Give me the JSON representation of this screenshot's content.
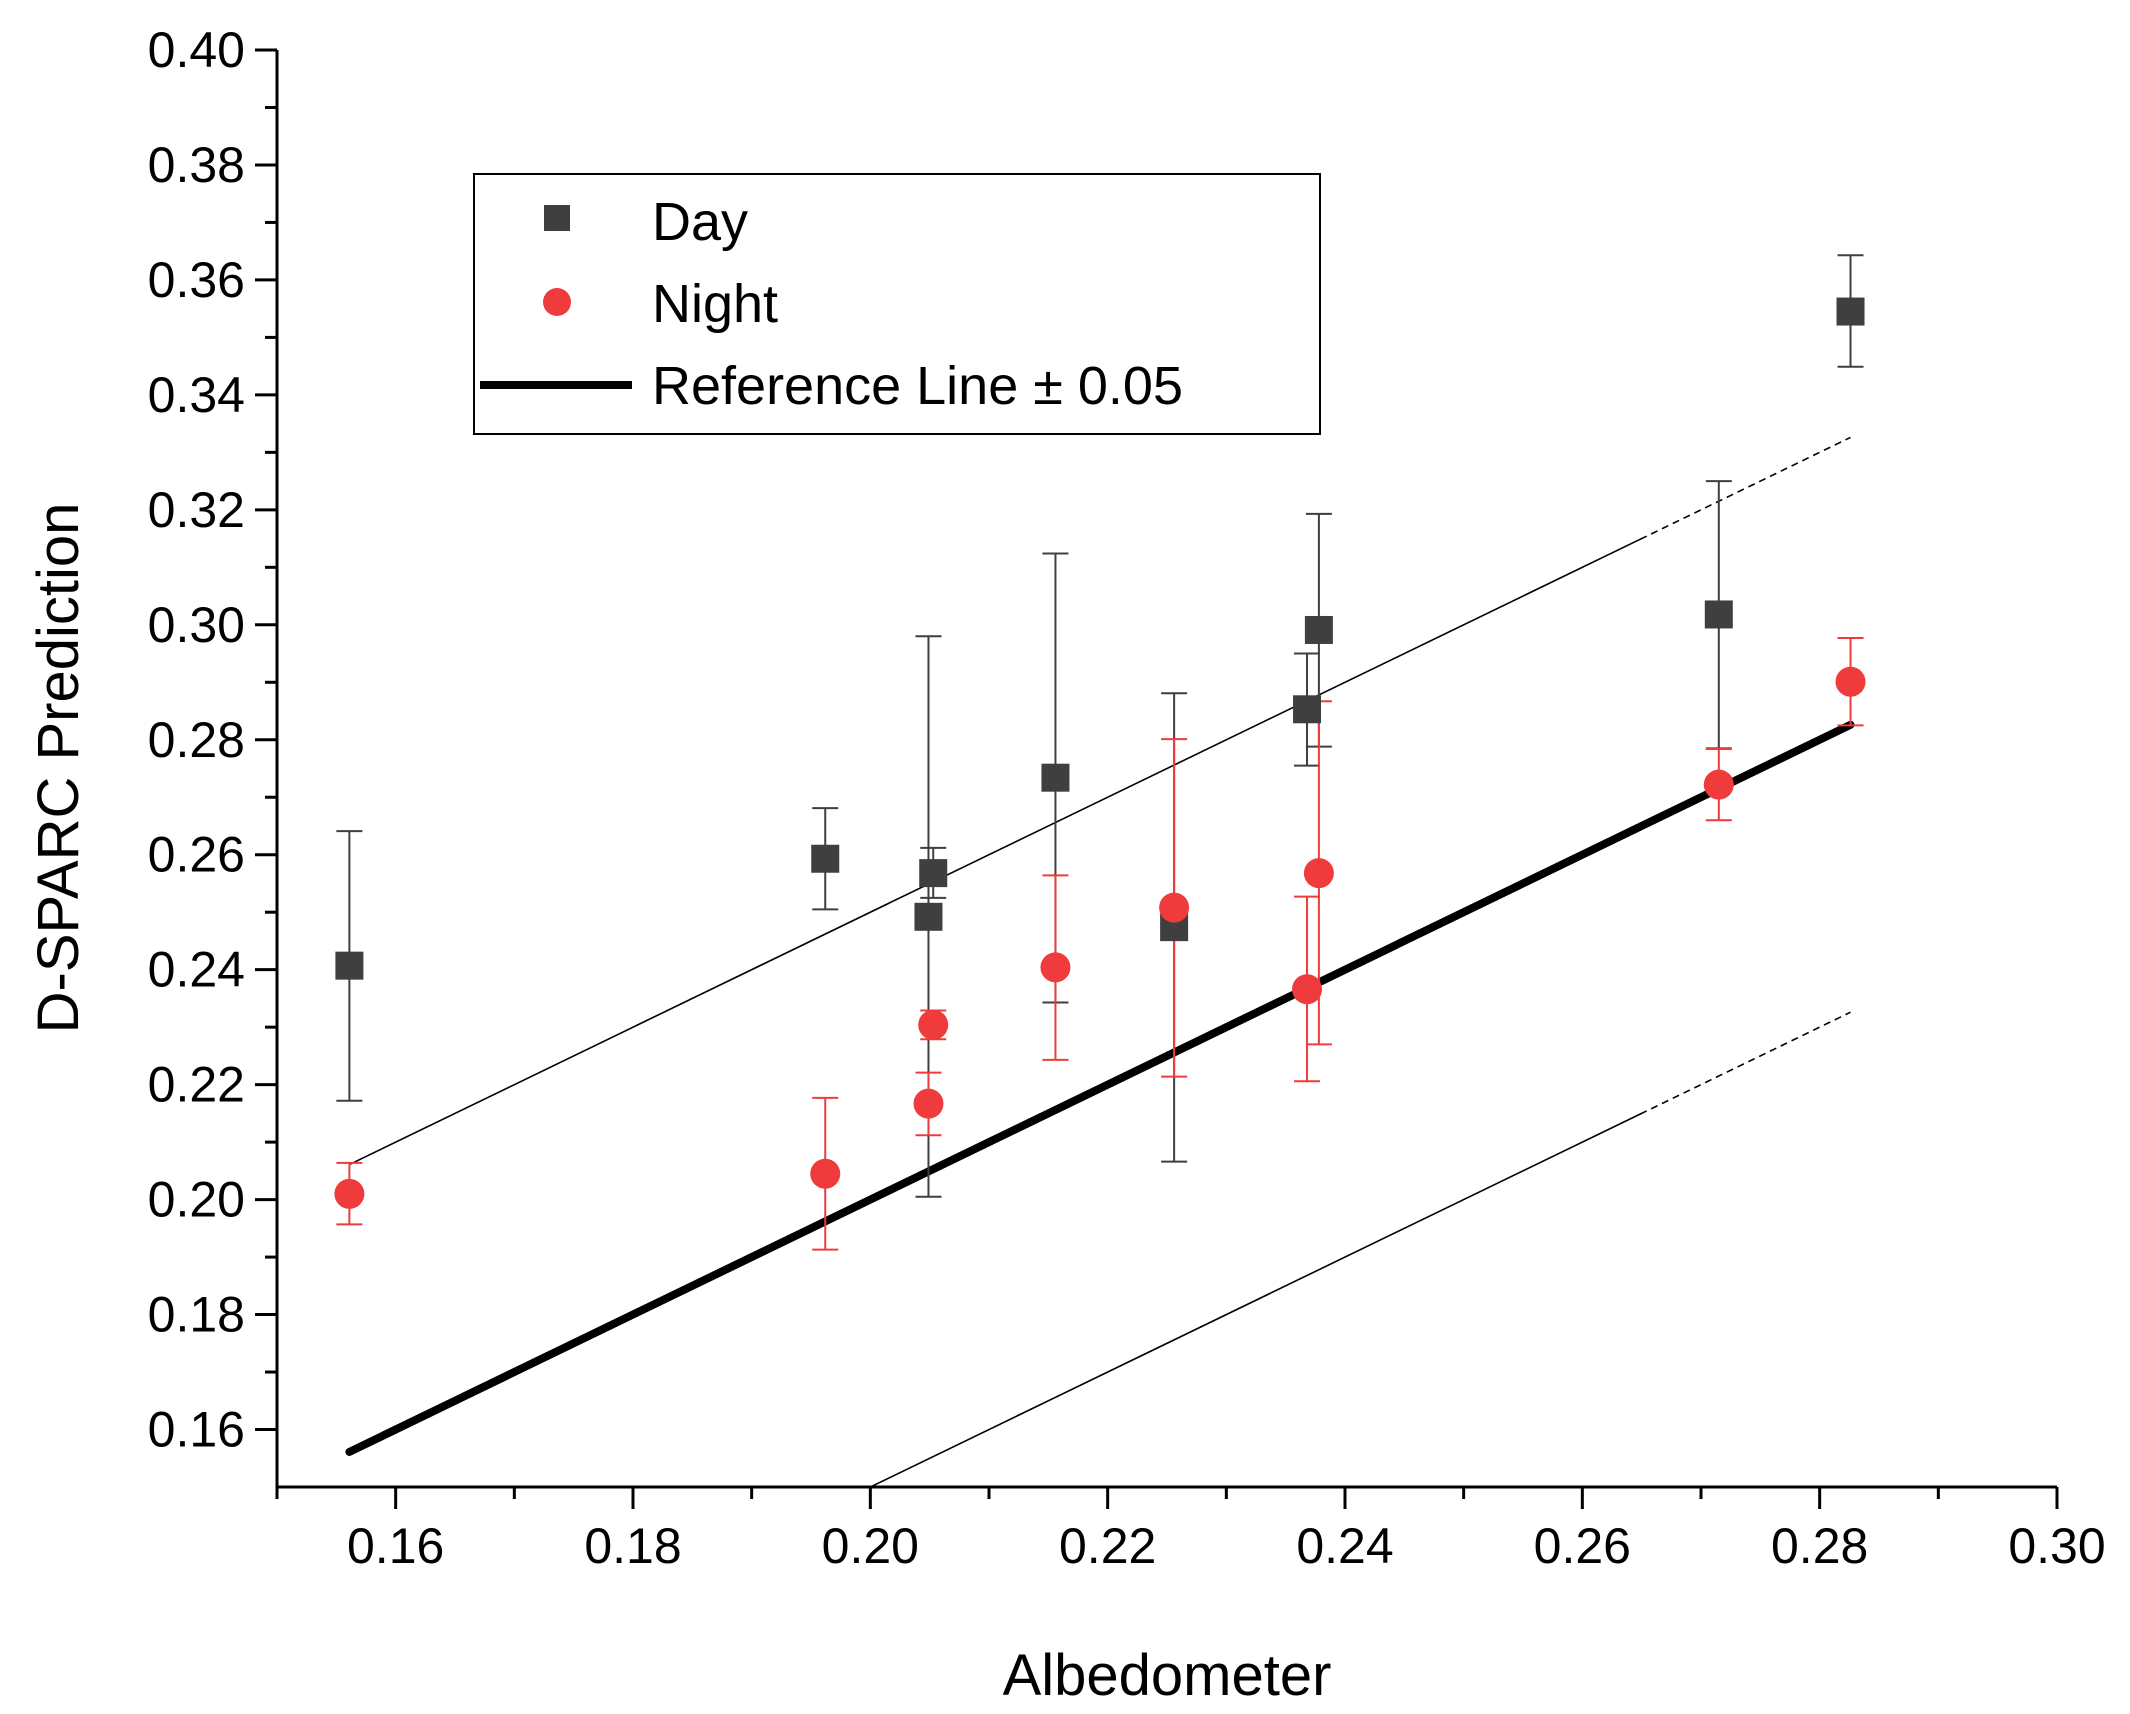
{
  "chart_data": {
    "type": "scatter",
    "title": "",
    "xlabel": "Albedometer",
    "ylabel": "D-SPARC Prediction",
    "xlim": [
      0.15,
      0.3
    ],
    "ylim": [
      0.15,
      0.4
    ],
    "x_ticks": [
      0.16,
      0.18,
      0.2,
      0.22,
      0.24,
      0.26,
      0.28,
      0.3
    ],
    "y_ticks": [
      0.16,
      0.18,
      0.2,
      0.22,
      0.24,
      0.26,
      0.28,
      0.3,
      0.32,
      0.34,
      0.36,
      0.38,
      0.4
    ],
    "x_tick_labels": [
      "0.16",
      "0.18",
      "0.20",
      "0.22",
      "0.24",
      "0.26",
      "0.28",
      "0.30"
    ],
    "y_tick_labels": [
      "0.16",
      "0.18",
      "0.20",
      "0.22",
      "0.24",
      "0.26",
      "0.28",
      "0.30",
      "0.32",
      "0.34",
      "0.36",
      "0.38",
      "0.40"
    ],
    "grid": false,
    "legend_position": "top-left",
    "series": [
      {
        "name": "Day",
        "marker": "square",
        "color": "#3f3f3f",
        "points": [
          {
            "x": 0.1561,
            "y": 0.2407,
            "err_low": 0.2172,
            "err_high": 0.2641
          },
          {
            "x": 0.1962,
            "y": 0.2593,
            "err_low": 0.2505,
            "err_high": 0.2681
          },
          {
            "x": 0.2049,
            "y": 0.2492,
            "err_low": 0.2005,
            "err_high": 0.298
          },
          {
            "x": 0.2053,
            "y": 0.2568,
            "err_low": 0.2525,
            "err_high": 0.2612
          },
          {
            "x": 0.2156,
            "y": 0.2734,
            "err_low": 0.2343,
            "err_high": 0.3124
          },
          {
            "x": 0.2256,
            "y": 0.2474,
            "err_low": 0.2066,
            "err_high": 0.2881
          },
          {
            "x": 0.2368,
            "y": 0.2853,
            "err_low": 0.2755,
            "err_high": 0.295
          },
          {
            "x": 0.2378,
            "y": 0.2991,
            "err_low": 0.2788,
            "err_high": 0.3193
          },
          {
            "x": 0.2715,
            "y": 0.3018,
            "err_low": 0.2785,
            "err_high": 0.325
          },
          {
            "x": 0.2826,
            "y": 0.3545,
            "err_low": 0.3449,
            "err_high": 0.3643
          }
        ]
      },
      {
        "name": "Night",
        "marker": "circle",
        "color": "#ef3b3b",
        "points": [
          {
            "x": 0.1561,
            "y": 0.201,
            "err_low": 0.1957,
            "err_high": 0.2064
          },
          {
            "x": 0.1962,
            "y": 0.2045,
            "err_low": 0.1913,
            "err_high": 0.2177
          },
          {
            "x": 0.2049,
            "y": 0.2167,
            "err_low": 0.2112,
            "err_high": 0.2221
          },
          {
            "x": 0.2053,
            "y": 0.2304,
            "err_low": 0.2279,
            "err_high": 0.2329
          },
          {
            "x": 0.2156,
            "y": 0.2404,
            "err_low": 0.2243,
            "err_high": 0.2564
          },
          {
            "x": 0.2256,
            "y": 0.2508,
            "err_low": 0.2214,
            "err_high": 0.2801
          },
          {
            "x": 0.2368,
            "y": 0.2366,
            "err_low": 0.2206,
            "err_high": 0.2527
          },
          {
            "x": 0.2378,
            "y": 0.2568,
            "err_low": 0.227,
            "err_high": 0.2867
          },
          {
            "x": 0.2715,
            "y": 0.2722,
            "err_low": 0.266,
            "err_high": 0.2784
          },
          {
            "x": 0.2826,
            "y": 0.2901,
            "err_low": 0.2825,
            "err_high": 0.2977
          }
        ]
      }
    ],
    "reference": {
      "name": "Reference Line ± 0.05",
      "slope": 1.0,
      "intercept": 0.0,
      "offset": 0.05,
      "x_start": 0.1561,
      "x_end": 0.2826,
      "color": "#000000"
    },
    "legend": [
      {
        "label": "Day",
        "marker": "square"
      },
      {
        "label": "Night",
        "marker": "circle"
      },
      {
        "label": "Reference Line ± 0.05",
        "marker": "line"
      }
    ]
  }
}
